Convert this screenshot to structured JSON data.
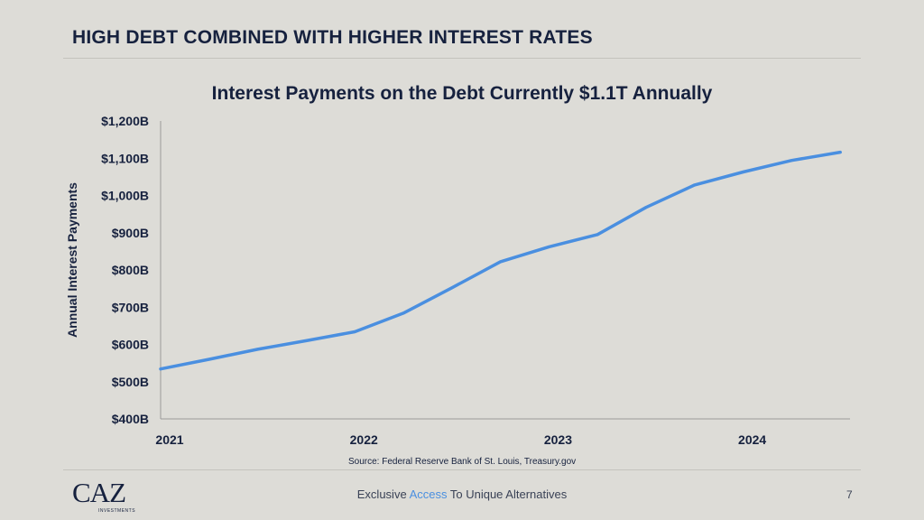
{
  "slide": {
    "title": "HIGH DEBT COMBINED WITH HIGHER INTEREST RATES",
    "source": "Source: Federal Reserve Bank of St. Louis, Treasury.gov",
    "tagline_pre": "Exclusive ",
    "tagline_accent": "Access",
    "tagline_post": " To Unique Alternatives",
    "page_number": "7",
    "logo_text": "CAZ",
    "logo_sub": "INVESTMENTS"
  },
  "colors": {
    "line": "#4a8fe0",
    "text": "#16213e",
    "background": "#dddcd7",
    "accent": "#4a8fe0"
  },
  "chart_data": {
    "type": "line",
    "title": "Interest Payments on the Debt Currently $1.1T Annually",
    "xlabel": "",
    "ylabel": "Annual Interest Payments",
    "ylim": [
      400,
      1200
    ],
    "xlim": [
      2021,
      2024.55
    ],
    "yticks": [
      400,
      500,
      600,
      700,
      800,
      900,
      1000,
      1100,
      1200
    ],
    "ytick_labels": [
      "$400B",
      "$500B",
      "$600B",
      "$700B",
      "$800B",
      "$900B",
      "$1,000B",
      "$1,100B",
      "$1,200B"
    ],
    "xticks": [
      2021,
      2022,
      2023,
      2024
    ],
    "xtick_labels": [
      "2021",
      "2022",
      "2023",
      "2024"
    ],
    "grid": false,
    "series": [
      {
        "x": [
          2021.0,
          2021.25,
          2021.5,
          2021.75,
          2022.0,
          2022.25,
          2022.5,
          2022.75,
          2023.0,
          2023.25,
          2023.5,
          2023.75,
          2024.0,
          2024.25,
          2024.5
        ],
        "values": [
          534,
          560,
          587,
          610,
          634,
          684,
          752,
          822,
          862,
          895,
          968,
          1028,
          1063,
          1094,
          1116
        ]
      }
    ]
  }
}
